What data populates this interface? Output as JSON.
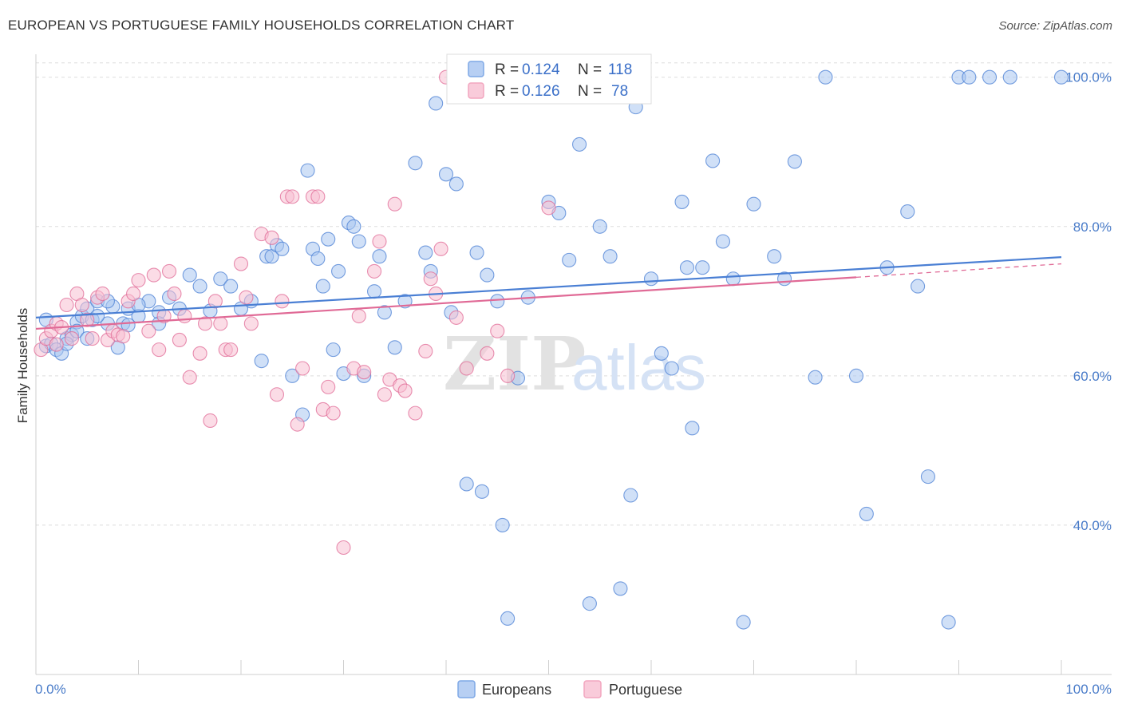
{
  "title": "EUROPEAN VS PORTUGUESE FAMILY HOUSEHOLDS CORRELATION CHART",
  "source": "Source: ZipAtlas.com",
  "watermark": {
    "zip": "ZIP",
    "atlas": "atlas"
  },
  "legend_top": [
    {
      "r_label": "R = ",
      "r_value": "0.124",
      "n_label": "N = ",
      "n_value": "118",
      "color": "#7fa8e6"
    },
    {
      "r_label": "R = ",
      "r_value": "0.126",
      "n_label": "N = ",
      "n_value": "78",
      "color": "#f2a6bf"
    }
  ],
  "legend_bottom": [
    {
      "label": "Europeans",
      "color": "#7fa8e6"
    },
    {
      "label": "Portuguese",
      "color": "#f2a6bf"
    }
  ],
  "chart_data": {
    "type": "scatter",
    "title": "EUROPEAN VS PORTUGUESE FAMILY HOUSEHOLDS CORRELATION CHART",
    "xlabel": "",
    "ylabel": "Family Households",
    "xlim": [
      0,
      100
    ],
    "ylim": [
      20,
      102
    ],
    "x_tick_labels": [
      "0.0%",
      "100.0%"
    ],
    "y_ticks": [
      40,
      60,
      80,
      100
    ],
    "y_tick_labels": [
      "40.0%",
      "60.0%",
      "80.0%",
      "100.0%"
    ],
    "grid": true,
    "legend": "top-center",
    "series": [
      {
        "name": "Europeans",
        "color": "#4a7fd4",
        "fill": "#a9c6f0",
        "trend": {
          "x": [
            0,
            100
          ],
          "y": [
            67.8,
            75.9
          ]
        },
        "points": [
          [
            1,
            64
          ],
          [
            1.5,
            64.3
          ],
          [
            2,
            63.5
          ],
          [
            3,
            65
          ],
          [
            3.5,
            65.5
          ],
          [
            4,
            67.2
          ],
          [
            4.5,
            68
          ],
          [
            5,
            69
          ],
          [
            5.5,
            67.5
          ],
          [
            6,
            70
          ],
          [
            7,
            67
          ],
          [
            7.5,
            69.3
          ],
          [
            8,
            63.8
          ],
          [
            8.5,
            67
          ],
          [
            9,
            69
          ],
          [
            10,
            68
          ],
          [
            11,
            70
          ],
          [
            12,
            68.5
          ],
          [
            13,
            70.5
          ],
          [
            14,
            69
          ],
          [
            15,
            73.5
          ],
          [
            16,
            72
          ],
          [
            17,
            68.7
          ],
          [
            18,
            73
          ],
          [
            19,
            72
          ],
          [
            20,
            69
          ],
          [
            21,
            70
          ],
          [
            22,
            62
          ],
          [
            22.5,
            76
          ],
          [
            23,
            76
          ],
          [
            23.5,
            77.5
          ],
          [
            24,
            77
          ],
          [
            25,
            60
          ],
          [
            26,
            54.8
          ],
          [
            26.5,
            87.5
          ],
          [
            27,
            77
          ],
          [
            27.5,
            75.7
          ],
          [
            28,
            72
          ],
          [
            28.5,
            78.3
          ],
          [
            29,
            63.5
          ],
          [
            29.5,
            74
          ],
          [
            30,
            60.3
          ],
          [
            30.5,
            80.5
          ],
          [
            31,
            80
          ],
          [
            31.5,
            78
          ],
          [
            32,
            60
          ],
          [
            33,
            71.3
          ],
          [
            33.5,
            76
          ],
          [
            34,
            68.5
          ],
          [
            35,
            63.8
          ],
          [
            36,
            70
          ],
          [
            37,
            88.5
          ],
          [
            38,
            76.5
          ],
          [
            38.5,
            74
          ],
          [
            39,
            96.5
          ],
          [
            40,
            87
          ],
          [
            40.5,
            68.5
          ],
          [
            41,
            85.7
          ],
          [
            42,
            45.5
          ],
          [
            42.5,
            100
          ],
          [
            43,
            76.5
          ],
          [
            43.5,
            44.5
          ],
          [
            44,
            73.5
          ],
          [
            45,
            70
          ],
          [
            45.5,
            40
          ],
          [
            46,
            27.5
          ],
          [
            47,
            59.7
          ],
          [
            48,
            70.5
          ],
          [
            50,
            83.3
          ],
          [
            51,
            81.8
          ],
          [
            52,
            75.5
          ],
          [
            53,
            91
          ],
          [
            54,
            29.5
          ],
          [
            55,
            80
          ],
          [
            56,
            76
          ],
          [
            57,
            31.5
          ],
          [
            58,
            44
          ],
          [
            58.5,
            96
          ],
          [
            59,
            100
          ],
          [
            60,
            73
          ],
          [
            61,
            63
          ],
          [
            62,
            61
          ],
          [
            63,
            83.3
          ],
          [
            63.5,
            74.5
          ],
          [
            64,
            53
          ],
          [
            65,
            74.5
          ],
          [
            66,
            88.8
          ],
          [
            67,
            78
          ],
          [
            68,
            73
          ],
          [
            69,
            27
          ],
          [
            70,
            83
          ],
          [
            72,
            76
          ],
          [
            73,
            73
          ],
          [
            74,
            88.7
          ],
          [
            76,
            59.8
          ],
          [
            77,
            100
          ],
          [
            80,
            60
          ],
          [
            81,
            41.5
          ],
          [
            83,
            74.5
          ],
          [
            85,
            82
          ],
          [
            86,
            72
          ],
          [
            87,
            46.5
          ],
          [
            89,
            27
          ],
          [
            90,
            100
          ],
          [
            91,
            100
          ],
          [
            93,
            100
          ],
          [
            95,
            100
          ],
          [
            100,
            100
          ],
          [
            1,
            67.5
          ],
          [
            2.5,
            63
          ],
          [
            3,
            64.3
          ],
          [
            4,
            66
          ],
          [
            5,
            65
          ],
          [
            6,
            68
          ],
          [
            7,
            70
          ],
          [
            9,
            66.8
          ],
          [
            10,
            69.5
          ],
          [
            12,
            67
          ]
        ]
      },
      {
        "name": "Portuguese",
        "color": "#e06a96",
        "fill": "#f7bfd2",
        "trend": {
          "x": [
            0,
            80
          ],
          "y": [
            66.3,
            73.2
          ]
        },
        "trend_dashed": {
          "x": [
            80,
            100
          ],
          "y": [
            73.2,
            75
          ]
        },
        "points": [
          [
            0.5,
            63.5
          ],
          [
            1,
            65
          ],
          [
            1.5,
            66
          ],
          [
            2,
            67
          ],
          [
            2.5,
            66.5
          ],
          [
            3,
            69.5
          ],
          [
            3.5,
            65
          ],
          [
            4,
            71
          ],
          [
            4.5,
            69.5
          ],
          [
            5,
            67.5
          ],
          [
            5.5,
            65
          ],
          [
            6,
            70.5
          ],
          [
            6.5,
            71
          ],
          [
            7,
            64.8
          ],
          [
            7.5,
            66
          ],
          [
            8,
            65.5
          ],
          [
            8.5,
            65.3
          ],
          [
            9,
            70
          ],
          [
            9.5,
            71
          ],
          [
            10,
            72.8
          ],
          [
            11,
            66
          ],
          [
            11.5,
            73.5
          ],
          [
            12,
            63.5
          ],
          [
            12.5,
            68
          ],
          [
            13,
            74
          ],
          [
            13.5,
            71
          ],
          [
            14,
            64.8
          ],
          [
            14.5,
            68
          ],
          [
            15,
            59.8
          ],
          [
            16,
            63
          ],
          [
            16.5,
            67
          ],
          [
            17,
            54
          ],
          [
            17.5,
            70
          ],
          [
            18,
            67
          ],
          [
            18.5,
            63.5
          ],
          [
            19,
            63.5
          ],
          [
            20,
            75
          ],
          [
            20.5,
            70.5
          ],
          [
            21,
            67
          ],
          [
            22,
            79
          ],
          [
            23,
            78.5
          ],
          [
            23.5,
            57.5
          ],
          [
            24,
            70
          ],
          [
            24.5,
            84
          ],
          [
            25,
            84
          ],
          [
            25.5,
            53.5
          ],
          [
            26,
            61
          ],
          [
            27,
            84
          ],
          [
            27.5,
            84
          ],
          [
            28,
            55.5
          ],
          [
            28.5,
            58.5
          ],
          [
            29,
            55
          ],
          [
            30,
            37
          ],
          [
            31,
            61
          ],
          [
            31.5,
            68
          ],
          [
            32,
            60.5
          ],
          [
            33,
            74
          ],
          [
            33.5,
            78
          ],
          [
            34,
            57.5
          ],
          [
            34.5,
            59.5
          ],
          [
            35,
            83
          ],
          [
            35.5,
            58.7
          ],
          [
            36,
            58
          ],
          [
            37,
            55
          ],
          [
            38,
            63.3
          ],
          [
            38.5,
            73
          ],
          [
            39,
            71
          ],
          [
            39.5,
            77
          ],
          [
            40,
            100
          ],
          [
            41,
            67.8
          ],
          [
            42,
            61
          ],
          [
            43,
            100
          ],
          [
            44,
            63
          ],
          [
            45,
            66
          ],
          [
            46,
            60
          ],
          [
            50,
            82.5
          ],
          [
            48,
            100
          ],
          [
            2,
            64.2
          ]
        ]
      }
    ]
  }
}
